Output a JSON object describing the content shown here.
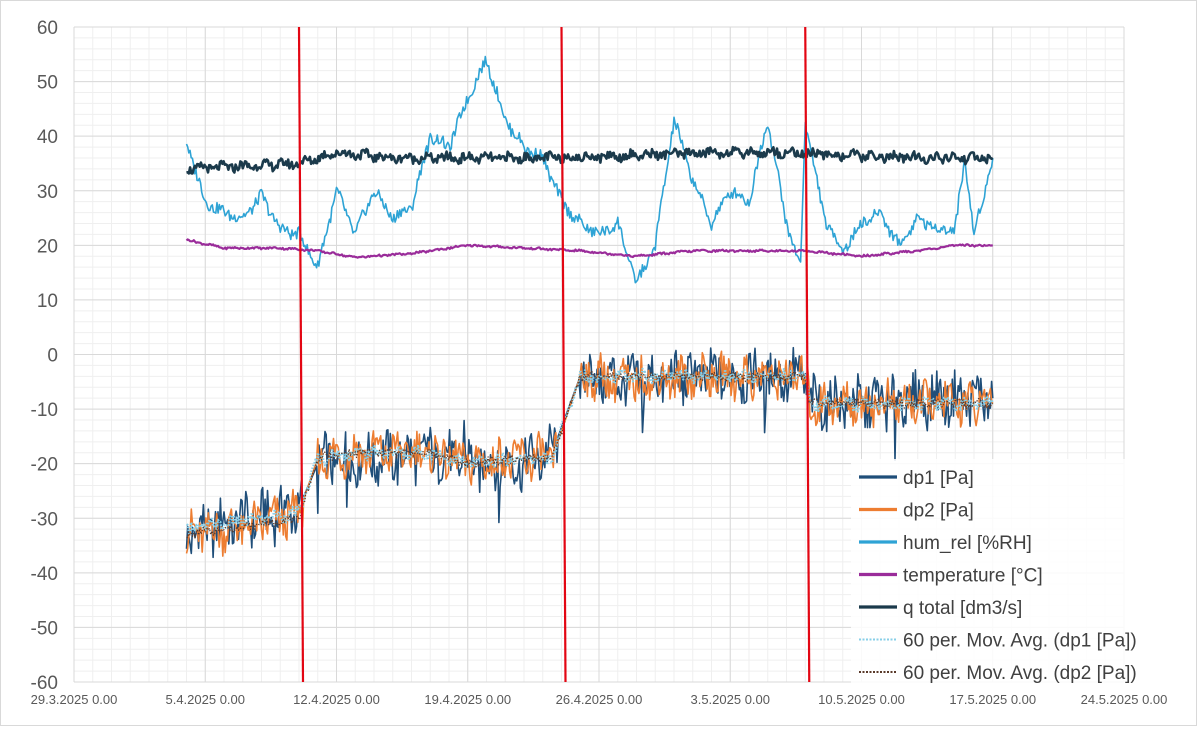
{
  "chart_data": {
    "type": "line",
    "title": "",
    "xlabel": "",
    "ylabel": "",
    "ylim": [
      -60,
      60
    ],
    "yticks": [
      60,
      50,
      40,
      30,
      20,
      10,
      0,
      -10,
      -20,
      -30,
      -40,
      -50,
      -60
    ],
    "xlim": [
      "29.3.2025 0.00",
      "24.5.2025 0.00"
    ],
    "xticks": [
      "29.3.2025 0.00",
      "5.4.2025 0.00",
      "12.4.2025 0.00",
      "19.4.2025 0.00",
      "26.4.2025 0.00",
      "3.5.2025 0.00",
      "10.5.2025 0.00",
      "17.5.2025 0.00",
      "24.5.2025 0.00"
    ],
    "grid": true,
    "legend_position": "bottom-right",
    "vertical_markers": [
      {
        "x": "10.4.2025 0.00",
        "color": "#e30613"
      },
      {
        "x": "24.4.2025 0.00",
        "color": "#e30613"
      },
      {
        "x": "7.5.2025 0.00",
        "color": "#e30613"
      }
    ],
    "series": [
      {
        "name": "dp1 [Pa]",
        "color": "#1f4e79",
        "style": "solid",
        "noise": 6.0,
        "points": [
          [
            "4.4.2025",
            -33
          ],
          [
            "6.4.2025",
            -31
          ],
          [
            "8.4.2025",
            -30
          ],
          [
            "10.4.2025",
            -28
          ],
          [
            "11.4.2025",
            -20
          ],
          [
            "13.4.2025",
            -19
          ],
          [
            "15.4.2025",
            -19
          ],
          [
            "17.4.2025",
            -18
          ],
          [
            "19.4.2025",
            -20
          ],
          [
            "22.4.2025",
            -20
          ],
          [
            "23.4.2025 12:00",
            -18
          ],
          [
            "25.4.2025",
            -4
          ],
          [
            "28.4.2025",
            -5
          ],
          [
            "1.5.2025",
            -4
          ],
          [
            "4.5.2025",
            -4
          ],
          [
            "7.5.2025",
            -4
          ],
          [
            "7.5.2025 06:00",
            -9
          ],
          [
            "10.5.2025",
            -9
          ],
          [
            "13.5.2025",
            -8
          ],
          [
            "17.5.2025",
            -8
          ]
        ]
      },
      {
        "name": "dp2 [Pa]",
        "color": "#ed7d31",
        "style": "solid",
        "noise": 5.0,
        "points": [
          [
            "4.4.2025",
            -33
          ],
          [
            "6.4.2025",
            -32
          ],
          [
            "8.4.2025",
            -31
          ],
          [
            "10.4.2025",
            -29
          ],
          [
            "11.4.2025",
            -19
          ],
          [
            "13.4.2025",
            -18
          ],
          [
            "15.4.2025",
            -18
          ],
          [
            "17.4.2025",
            -18
          ],
          [
            "19.4.2025",
            -20
          ],
          [
            "22.4.2025",
            -19
          ],
          [
            "23.4.2025 12:00",
            -19
          ],
          [
            "25.4.2025",
            -4
          ],
          [
            "28.4.2025",
            -5
          ],
          [
            "1.5.2025",
            -4
          ],
          [
            "4.5.2025",
            -4
          ],
          [
            "7.5.2025",
            -4
          ],
          [
            "7.5.2025 06:00",
            -9
          ],
          [
            "10.5.2025",
            -9
          ],
          [
            "13.5.2025",
            -9
          ],
          [
            "17.5.2025",
            -9
          ]
        ]
      },
      {
        "name": "hum_rel [%RH]",
        "color": "#2ea3d5",
        "style": "solid",
        "noise": 1.5,
        "points": [
          [
            "4.4.2025",
            39
          ],
          [
            "5.4.2025",
            28
          ],
          [
            "6.4.2025",
            26
          ],
          [
            "7.4.2025",
            25
          ],
          [
            "8.4.2025",
            29
          ],
          [
            "9.4.2025",
            23
          ],
          [
            "10.4.2025",
            22
          ],
          [
            "11.4.2025",
            16
          ],
          [
            "12.4.2025",
            30
          ],
          [
            "13.4.2025",
            22
          ],
          [
            "14.4.2025",
            30
          ],
          [
            "15.4.2025",
            25
          ],
          [
            "16.4.2025",
            27
          ],
          [
            "17.4.2025",
            40
          ],
          [
            "18.4.2025",
            38
          ],
          [
            "19.4.2025",
            47
          ],
          [
            "20.4.2025",
            54
          ],
          [
            "21.4.2025",
            43
          ],
          [
            "22.4.2025",
            38
          ],
          [
            "23.4.2025",
            36
          ],
          [
            "24.4.2025",
            28
          ],
          [
            "25.4.2025",
            24
          ],
          [
            "26.4.2025",
            22
          ],
          [
            "27.4.2025",
            24
          ],
          [
            "28.4.2025",
            13
          ],
          [
            "29.4.2025",
            20
          ],
          [
            "30.4.2025",
            43
          ],
          [
            "1.5.2025",
            32
          ],
          [
            "2.5.2025",
            24
          ],
          [
            "3.5.2025",
            30
          ],
          [
            "4.5.2025",
            28
          ],
          [
            "5.5.2025",
            43
          ],
          [
            "6.5.2025",
            24
          ],
          [
            "6.5.2025 18:00",
            16
          ],
          [
            "7.5.2025",
            43
          ],
          [
            "8.5.2025",
            25
          ],
          [
            "9.5.2025",
            19
          ],
          [
            "10.5.2025",
            24
          ],
          [
            "11.5.2025",
            26
          ],
          [
            "12.5.2025",
            20
          ],
          [
            "13.5.2025",
            25
          ],
          [
            "14.5.2025",
            23
          ],
          [
            "15.5.2025",
            23
          ],
          [
            "15.5.2025 12:00",
            36
          ],
          [
            "16.5.2025",
            22
          ],
          [
            "17.5.2025",
            36
          ]
        ]
      },
      {
        "name": "temperature [°C]",
        "color": "#9a2c9a",
        "style": "solid",
        "noise": 0.25,
        "points": [
          [
            "4.4.2025",
            21
          ],
          [
            "6.4.2025",
            19.5
          ],
          [
            "9.4.2025",
            19.5
          ],
          [
            "11.4.2025",
            19
          ],
          [
            "13.4.2025",
            17.8
          ],
          [
            "16.4.2025",
            18.5
          ],
          [
            "19.4.2025",
            20
          ],
          [
            "22.4.2025",
            19.5
          ],
          [
            "25.4.2025",
            19
          ],
          [
            "28.4.2025",
            18
          ],
          [
            "1.5.2025",
            19
          ],
          [
            "4.5.2025",
            19
          ],
          [
            "7.5.2025",
            19
          ],
          [
            "10.5.2025",
            18
          ],
          [
            "13.5.2025",
            19
          ],
          [
            "15.5.2025",
            20
          ],
          [
            "17.5.2025",
            20
          ]
        ]
      },
      {
        "name": "q total [dm3/s]",
        "color": "#1b3a4b",
        "style": "solid",
        "noise": 1.2,
        "points": [
          [
            "4.4.2025",
            34
          ],
          [
            "7.4.2025",
            34.5
          ],
          [
            "10.4.2025",
            35
          ],
          [
            "12.4.2025",
            37
          ],
          [
            "15.4.2025",
            36
          ],
          [
            "18.4.2025",
            36
          ],
          [
            "21.4.2025",
            36
          ],
          [
            "23.4.2025",
            36
          ],
          [
            "28.4.2025",
            36.5
          ],
          [
            "2.5.2025",
            37
          ],
          [
            "6.5.2025",
            37
          ],
          [
            "9.5.2025",
            36.5
          ],
          [
            "13.5.2025",
            36
          ],
          [
            "17.5.2025",
            36
          ]
        ]
      },
      {
        "name": "60 per. Mov. Avg. (dp1 [Pa])",
        "color": "#87cfe8",
        "style": "dotted",
        "noise": 1.5,
        "points": [
          [
            "4.4.2025",
            -32
          ],
          [
            "6.4.2025",
            -31
          ],
          [
            "8.4.2025",
            -30
          ],
          [
            "10.4.2025",
            -29
          ],
          [
            "11.4.2025",
            -19
          ],
          [
            "13.4.2025",
            -18
          ],
          [
            "15.4.2025",
            -18
          ],
          [
            "17.4.2025",
            -18
          ],
          [
            "19.4.2025",
            -20
          ],
          [
            "22.4.2025",
            -19
          ],
          [
            "23.4.2025 12:00",
            -19
          ],
          [
            "25.4.2025",
            -4
          ],
          [
            "28.4.2025",
            -4
          ],
          [
            "1.5.2025",
            -4
          ],
          [
            "4.5.2025",
            -4
          ],
          [
            "7.5.2025",
            -4
          ],
          [
            "7.5.2025 06:00",
            -9
          ],
          [
            "10.5.2025",
            -9
          ],
          [
            "13.5.2025",
            -9
          ],
          [
            "17.5.2025",
            -9
          ]
        ]
      },
      {
        "name": "60 per. Mov. Avg. (dp2 [Pa])",
        "color": "#5a3a2a",
        "style": "dotted",
        "noise": 1.0,
        "points": [
          [
            "4.4.2025",
            -33
          ],
          [
            "6.4.2025",
            -32
          ],
          [
            "8.4.2025",
            -31
          ],
          [
            "10.4.2025",
            -30
          ],
          [
            "11.4.2025",
            -19
          ],
          [
            "13.4.2025",
            -18
          ],
          [
            "15.4.2025",
            -18
          ],
          [
            "17.4.2025",
            -18
          ],
          [
            "19.4.2025",
            -20
          ],
          [
            "22.4.2025",
            -19
          ],
          [
            "23.4.2025 12:00",
            -19
          ],
          [
            "25.4.2025",
            -4
          ],
          [
            "28.4.2025",
            -4
          ],
          [
            "1.5.2025",
            -4
          ],
          [
            "4.5.2025",
            -4
          ],
          [
            "7.5.2025",
            -4
          ],
          [
            "7.5.2025 06:00",
            -9
          ],
          [
            "10.5.2025",
            -9
          ],
          [
            "13.5.2025",
            -9
          ],
          [
            "17.5.2025",
            -9
          ]
        ]
      }
    ]
  }
}
